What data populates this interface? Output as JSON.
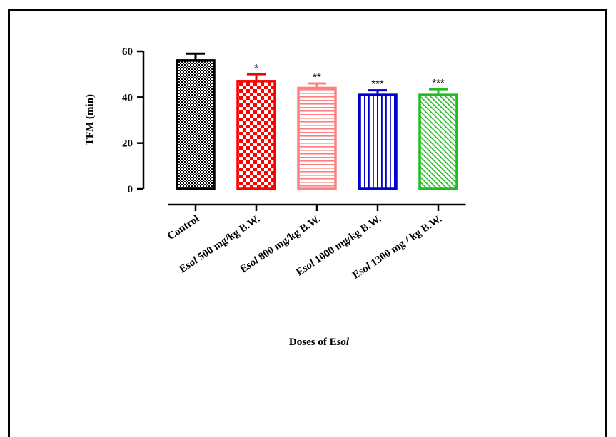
{
  "chart_data": {
    "type": "bar",
    "title": "",
    "ylabel": "TFM (min)",
    "xlabel_parts": [
      {
        "text": "Doses of E",
        "italic": false
      },
      {
        "text": "sol",
        "italic": true
      }
    ],
    "ylim": [
      0,
      60
    ],
    "yticks": [
      0,
      20,
      40,
      60
    ],
    "categories": [
      {
        "id": "control",
        "parts": [
          {
            "text": "Control",
            "italic": false
          }
        ]
      },
      {
        "id": "esol-500",
        "parts": [
          {
            "text": "E",
            "italic": false
          },
          {
            "text": "sol",
            "italic": true
          },
          {
            "text": " 500 mg/kg B.W.",
            "italic": false
          }
        ]
      },
      {
        "id": "esol-800",
        "parts": [
          {
            "text": "E",
            "italic": false
          },
          {
            "text": "sol",
            "italic": true
          },
          {
            "text": " 800 mg/kg B.W.",
            "italic": false
          }
        ]
      },
      {
        "id": "esol-1000",
        "parts": [
          {
            "text": "E",
            "italic": false
          },
          {
            "text": "sol",
            "italic": true
          },
          {
            "text": " 1000 mg/kg B.W.",
            "italic": false
          }
        ]
      },
      {
        "id": "esol-1300",
        "parts": [
          {
            "text": "E",
            "italic": false
          },
          {
            "text": "sol",
            "italic": true
          },
          {
            "text": " 1300 mg / kg B.W.",
            "italic": false
          }
        ]
      }
    ],
    "values": [
      56,
      47,
      44,
      41,
      41
    ],
    "errors": [
      3,
      3,
      2,
      2,
      2.5
    ],
    "significance": [
      "",
      "*",
      "**",
      "***",
      "***"
    ],
    "colors": [
      "#000000",
      "#ff0000",
      "#ff8080",
      "#0000cc",
      "#22bb22"
    ],
    "patterns": [
      "checker",
      "checker-large",
      "horizontal",
      "vertical",
      "diagonal"
    ],
    "grid": false,
    "legend": "none"
  }
}
